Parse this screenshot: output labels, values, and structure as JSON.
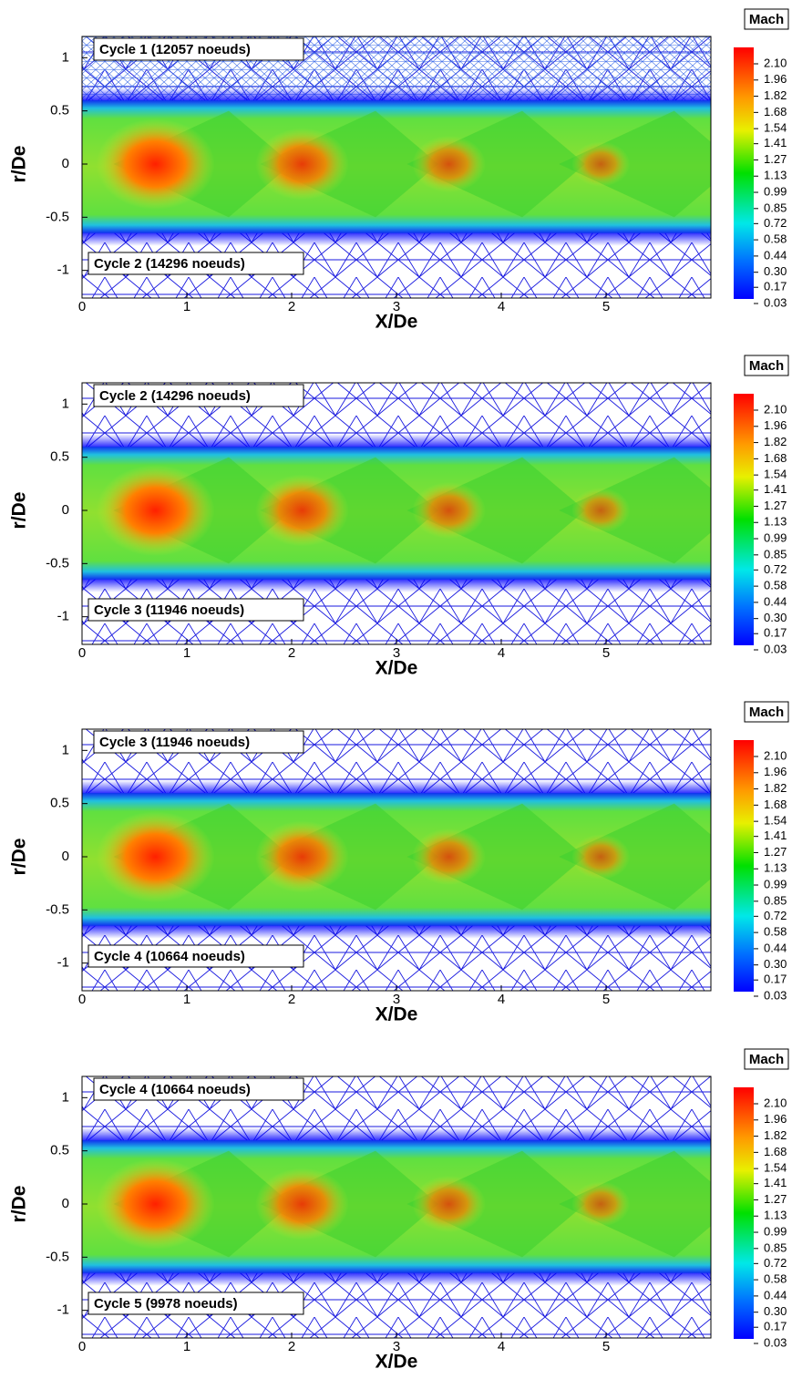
{
  "chart_data": [
    {
      "type": "contour",
      "xlabel": "X/De",
      "ylabel": "r/De",
      "xlim": [
        0,
        6
      ],
      "xticks": [
        0,
        1,
        2,
        3,
        4,
        5
      ],
      "ylim": [
        -1.26,
        1.2
      ],
      "yticks": [
        -1,
        -0.5,
        0,
        0.5,
        1
      ],
      "annotations": [
        "Cycle 1 (12057 noeuds)",
        "Cycle 2 (14296 noeuds)"
      ],
      "colorbar_title": "Mach",
      "levels": [
        {
          "value": 2.1,
          "label": "2.10"
        },
        1.96,
        1.82,
        1.68,
        1.54,
        1.41,
        1.27,
        1.13,
        0.99,
        0.85,
        0.72,
        0.58,
        0.44,
        {
          "value": 0.3,
          "label": "0.30"
        },
        0.17,
        0.03
      ]
    },
    {
      "type": "contour",
      "xlabel": "X/De",
      "ylabel": "r/De",
      "xlim": [
        0,
        6
      ],
      "xticks": [
        0,
        1,
        2,
        3,
        4,
        5
      ],
      "ylim": [
        -1.26,
        1.2
      ],
      "yticks": [
        -1,
        -0.5,
        0,
        0.5,
        1
      ],
      "annotations": [
        "Cycle 2 (14296 noeuds)",
        "Cycle 3 (11946 noeuds)"
      ],
      "colorbar_title": "Mach",
      "levels": [
        {
          "value": 2.1,
          "label": "2.10"
        },
        1.96,
        1.82,
        1.68,
        1.54,
        1.41,
        1.27,
        1.13,
        0.99,
        0.85,
        0.72,
        0.58,
        0.44,
        {
          "value": 0.3,
          "label": "0.30"
        },
        0.17,
        0.03
      ]
    },
    {
      "type": "contour",
      "xlabel": "X/De",
      "ylabel": "r/De",
      "xlim": [
        0,
        6
      ],
      "xticks": [
        0,
        1,
        2,
        3,
        4,
        5
      ],
      "ylim": [
        -1.26,
        1.2
      ],
      "yticks": [
        -1,
        -0.5,
        0,
        0.5,
        1
      ],
      "annotations": [
        "Cycle 3 (11946 noeuds)",
        "Cycle 4 (10664 noeuds)"
      ],
      "colorbar_title": "Mach",
      "levels": [
        {
          "value": 2.1,
          "label": "2.10"
        },
        1.96,
        1.82,
        1.68,
        1.54,
        1.41,
        1.27,
        1.13,
        0.99,
        0.85,
        0.72,
        0.58,
        0.44,
        {
          "value": 0.3,
          "label": "0.30"
        },
        0.17,
        0.03
      ]
    },
    {
      "type": "contour",
      "xlabel": "X/De",
      "ylabel": "r/De",
      "xlim": [
        0,
        6
      ],
      "xticks": [
        0,
        1,
        2,
        3,
        4,
        5
      ],
      "ylim": [
        -1.26,
        1.2
      ],
      "yticks": [
        -1,
        -0.5,
        0,
        0.5,
        1
      ],
      "annotations": [
        "Cycle 4 (10664 noeuds)",
        "Cycle 5 (9978 noeuds)"
      ],
      "colorbar_title": "Mach",
      "levels": [
        {
          "value": 2.1,
          "label": "2.10"
        },
        1.96,
        1.82,
        1.68,
        1.54,
        1.41,
        1.27,
        1.13,
        0.99,
        0.85,
        0.72,
        0.58,
        0.44,
        {
          "value": 0.3,
          "label": "0.30"
        },
        0.17,
        0.03
      ]
    }
  ]
}
